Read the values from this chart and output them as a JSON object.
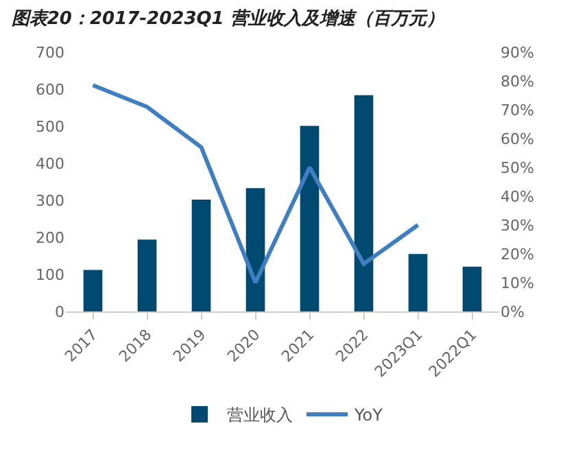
{
  "chart_data": {
    "type": "bar",
    "title": "图表20：2017-2023Q1 营业收入及增速（百万元）",
    "categories": [
      "2017",
      "2018",
      "2019",
      "2020",
      "2021",
      "2022",
      "2023Q1",
      "2022Q1"
    ],
    "series": [
      {
        "name": "营业收入",
        "color": "#004a72",
        "values": [
          112,
          194,
          302,
          333,
          501,
          584,
          155,
          121
        ]
      },
      {
        "name": "YoY",
        "type": "line",
        "axis": "y2",
        "color": "#3f7fc1",
        "values": [
          0.785,
          0.71,
          0.57,
          0.1,
          0.5,
          0.165,
          0.3,
          null
        ]
      }
    ],
    "ylim": [
      0,
      700
    ],
    "yticks": [
      0,
      100,
      200,
      300,
      400,
      500,
      600,
      700
    ],
    "y2lim": [
      0,
      0.9
    ],
    "y2ticks": [
      {
        "value": 0,
        "label": "0%"
      },
      {
        "value": 0.1,
        "label": "10%"
      },
      {
        "value": 0.2,
        "label": "20%"
      },
      {
        "value": 0.3,
        "label": "30%"
      },
      {
        "value": 0.4,
        "label": "40%"
      },
      {
        "value": 0.5,
        "label": "50%"
      },
      {
        "value": 0.6,
        "label": "60%"
      },
      {
        "value": 0.7,
        "label": "70%"
      },
      {
        "value": 0.8,
        "label": "80%"
      },
      {
        "value": 0.9,
        "label": "90%"
      }
    ],
    "grid": false,
    "legend": "bottom"
  }
}
